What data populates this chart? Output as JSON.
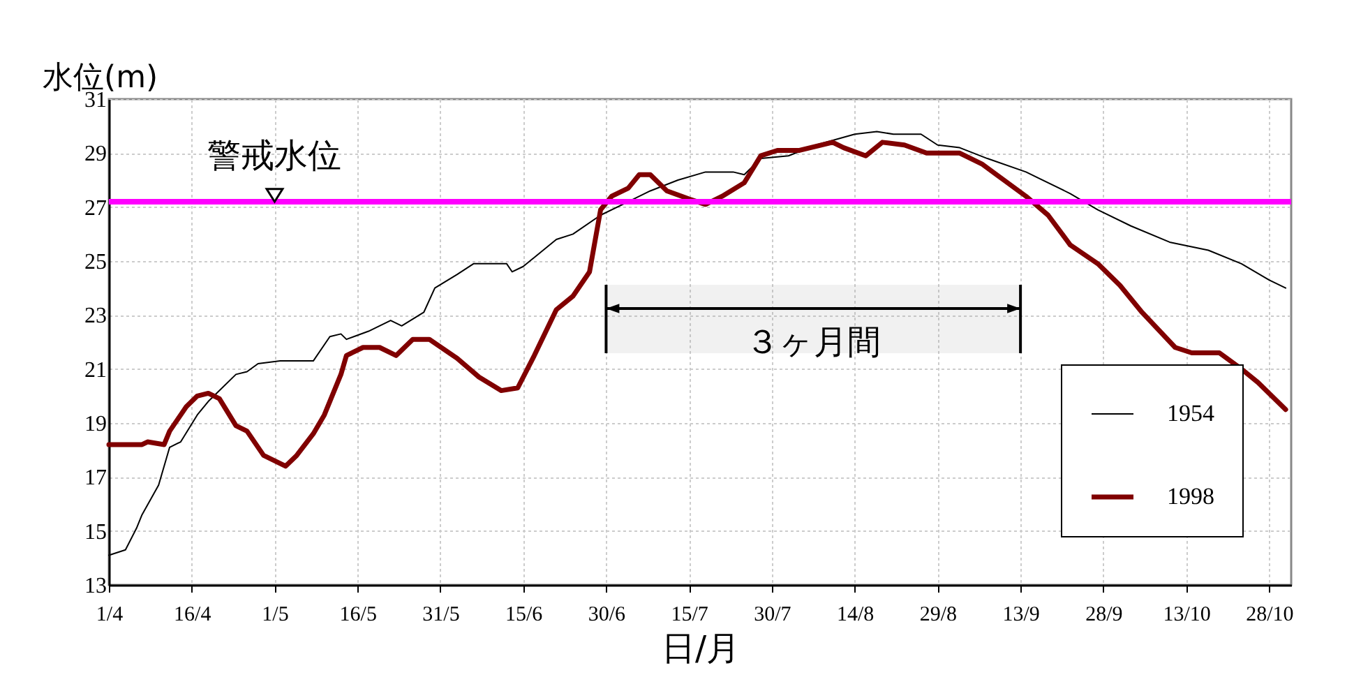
{
  "chart_data": {
    "type": "line",
    "xlabel": "日/月",
    "ylabel": "水位(m)",
    "xlim": [
      "--04-01",
      "--11-01"
    ],
    "ylim": [
      13,
      31
    ],
    "xticks": [
      {
        "value": "--04-01",
        "label": "1/4"
      },
      {
        "value": "--04-16",
        "label": "16/4"
      },
      {
        "value": "--05-01",
        "label": "1/5"
      },
      {
        "value": "--05-16",
        "label": "16/5"
      },
      {
        "value": "--05-31",
        "label": "31/5"
      },
      {
        "value": "--06-15",
        "label": "15/6"
      },
      {
        "value": "--06-30",
        "label": "30/6"
      },
      {
        "value": "--07-15",
        "label": "15/7"
      },
      {
        "value": "--07-30",
        "label": "30/7"
      },
      {
        "value": "--08-14",
        "label": "14/8"
      },
      {
        "value": "--08-29",
        "label": "29/8"
      },
      {
        "value": "--09-13",
        "label": "13/9"
      },
      {
        "value": "--09-28",
        "label": "28/9"
      },
      {
        "value": "--10-13",
        "label": "13/10"
      },
      {
        "value": "--10-28",
        "label": "28/10"
      }
    ],
    "yticks": [
      13,
      15,
      17,
      19,
      21,
      23,
      25,
      27,
      29,
      31
    ],
    "grid": true,
    "legend": "bottom right",
    "series": [
      {
        "name": "1954",
        "color": "#000000",
        "x": [
          "--04-01",
          "--04-04",
          "--04-06",
          "--04-07",
          "--04-10",
          "--04-12",
          "--04-14",
          "--04-17",
          "--04-19",
          "--04-24",
          "--04-26",
          "--04-28",
          "--05-02",
          "--05-08",
          "--05-11",
          "--05-13",
          "--05-14",
          "--05-18",
          "--05-20",
          "--05-22",
          "--05-24",
          "--05-28",
          "--05-30",
          "--06-03",
          "--06-06",
          "--06-12",
          "--06-13",
          "--06-15",
          "--06-21",
          "--06-24",
          "--06-29",
          "--07-03",
          "--07-08",
          "--07-13",
          "--07-18",
          "--07-23",
          "--07-25",
          "--07-28",
          "--08-02",
          "--08-07",
          "--08-14",
          "--08-18",
          "--08-21",
          "--08-26",
          "--08-29",
          "--09-02",
          "--09-07",
          "--09-14",
          "--09-22",
          "--09-27",
          "--10-03",
          "--10-10",
          "--10-17",
          "--10-23",
          "--10-28",
          "--10-31"
        ],
        "values": [
          14.1,
          14.3,
          15.1,
          15.6,
          16.7,
          18.1,
          18.3,
          19.3,
          19.8,
          20.8,
          20.9,
          21.2,
          21.3,
          21.3,
          22.2,
          22.3,
          22.1,
          22.4,
          22.6,
          22.8,
          22.6,
          23.1,
          24.0,
          24.5,
          24.9,
          24.9,
          24.6,
          24.8,
          25.8,
          26.0,
          26.7,
          27.1,
          27.6,
          28.0,
          28.3,
          28.3,
          28.2,
          28.8,
          28.9,
          29.3,
          29.7,
          29.8,
          29.7,
          29.7,
          29.3,
          29.2,
          28.8,
          28.3,
          27.5,
          26.9,
          26.3,
          25.7,
          25.4,
          24.9,
          24.3,
          24.0
        ]
      },
      {
        "name": "1998",
        "color": "#800000",
        "x": [
          "--04-01",
          "--04-07",
          "--04-08",
          "--04-11",
          "--04-12",
          "--04-15",
          "--04-17",
          "--04-19",
          "--04-21",
          "--04-24",
          "--04-26",
          "--04-29",
          "--05-03",
          "--05-05",
          "--05-08",
          "--05-10",
          "--05-13",
          "--05-14",
          "--05-17",
          "--05-20",
          "--05-23",
          "--05-26",
          "--05-29",
          "--06-03",
          "--06-07",
          "--06-11",
          "--06-14",
          "--06-17",
          "--06-21",
          "--06-24",
          "--06-27",
          "--06-29",
          "--07-01",
          "--07-04",
          "--07-06",
          "--07-08",
          "--07-11",
          "--07-15",
          "--07-18",
          "--07-21",
          "--07-25",
          "--07-28",
          "--07-31",
          "--08-04",
          "--08-10",
          "--08-12",
          "--08-16",
          "--08-19",
          "--08-23",
          "--08-27",
          "--09-02",
          "--09-06",
          "--09-10",
          "--09-14",
          "--09-18",
          "--09-22",
          "--09-27",
          "--10-01",
          "--10-05",
          "--10-11",
          "--10-14",
          "--10-19",
          "--10-23",
          "--10-26",
          "--10-31"
        ],
        "values": [
          18.2,
          18.2,
          18.3,
          18.2,
          18.7,
          19.6,
          20.0,
          20.1,
          19.9,
          18.9,
          18.7,
          17.8,
          17.4,
          17.8,
          18.6,
          19.3,
          20.8,
          21.5,
          21.8,
          21.8,
          21.5,
          22.1,
          22.1,
          21.4,
          20.7,
          20.2,
          20.3,
          21.5,
          23.2,
          23.7,
          24.6,
          26.9,
          27.4,
          27.7,
          28.2,
          28.2,
          27.6,
          27.3,
          27.1,
          27.4,
          27.9,
          28.9,
          29.1,
          29.1,
          29.4,
          29.2,
          28.9,
          29.4,
          29.3,
          29.0,
          29.0,
          28.6,
          28.0,
          27.4,
          26.7,
          25.6,
          24.9,
          24.1,
          23.1,
          21.8,
          21.6,
          21.6,
          21.0,
          20.5,
          19.5
        ]
      }
    ],
    "ref_lines": [
      {
        "axis": "y",
        "value": 27.2,
        "color": "#ff00ff"
      }
    ],
    "bands": [
      {
        "axis": "x",
        "from": "--06-30",
        "to": "--09-13",
        "label": "３ヶ月間"
      }
    ],
    "annotations": [
      {
        "text": "警戒水位",
        "x": "--05-01",
        "y": 27.2
      }
    ]
  }
}
